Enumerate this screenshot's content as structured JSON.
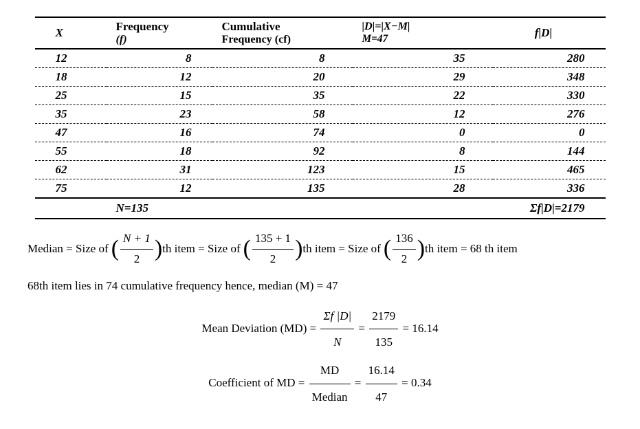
{
  "table": {
    "headers": {
      "x": "X",
      "f_top": "Frequency",
      "f_sub": "(f)",
      "cf_top": "Cumulative",
      "cf_sub": "Frequency (cf)",
      "d_top": "|D|=|X−M|",
      "d_sub": "M=47",
      "fd": "f|D|"
    },
    "rows": [
      {
        "x": "12",
        "f": "8",
        "cf": "8",
        "d": "35",
        "fd": "280"
      },
      {
        "x": "18",
        "f": "12",
        "cf": "20",
        "d": "29",
        "fd": "348"
      },
      {
        "x": "25",
        "f": "15",
        "cf": "35",
        "d": "22",
        "fd": "330"
      },
      {
        "x": "35",
        "f": "23",
        "cf": "58",
        "d": "12",
        "fd": "276"
      },
      {
        "x": "47",
        "f": "16",
        "cf": "74",
        "d": "0",
        "fd": "0"
      },
      {
        "x": "55",
        "f": "18",
        "cf": "92",
        "d": "8",
        "fd": "144"
      },
      {
        "x": "62",
        "f": "31",
        "cf": "123",
        "d": "15",
        "fd": "465"
      },
      {
        "x": "75",
        "f": "12",
        "cf": "135",
        "d": "28",
        "fd": "336"
      }
    ],
    "footer": {
      "N": "N=135",
      "sum": "Σf|D|=2179"
    }
  },
  "median_line": {
    "lead": "Median = Size of",
    "f1_num": "N + 1",
    "f1_den": "2",
    "mid1": "th item = Size of",
    "f2_num": "135 + 1",
    "f2_den": "2",
    "mid2": "th item = Size of",
    "f3_num": "136",
    "f3_den": "2",
    "end": "th item = 68 th item"
  },
  "note": "68th item lies in 74 cumulative frequency hence, median (M) = 47",
  "md_line": {
    "label": "Mean Deviation (MD) =",
    "f1_num": "Σf |D|",
    "f1_den": "N",
    "eq": "=",
    "f2_num": "2179",
    "f2_den": "135",
    "res": "= 16.14"
  },
  "coef_line": {
    "label": "Coefficient of MD =",
    "f1_num": "MD",
    "f1_den": "Median",
    "eq": "=",
    "f2_num": "16.14",
    "f2_den": "47",
    "res": "= 0.34"
  }
}
